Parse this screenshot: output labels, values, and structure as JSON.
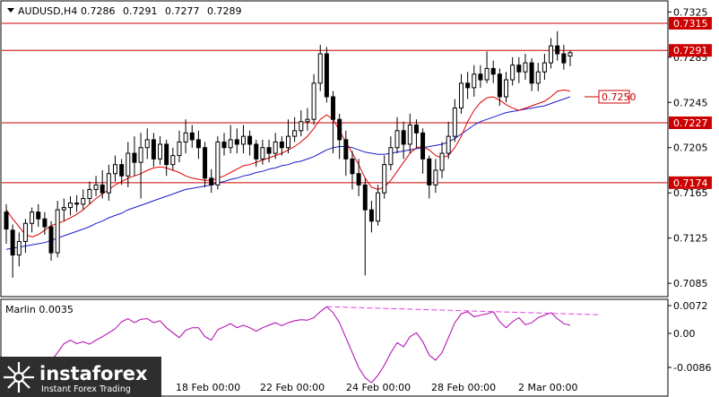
{
  "header": {
    "symbol": "AUDUSD,H4",
    "open": "0.7286",
    "high": "0.7291",
    "low": "0.7277",
    "close": "0.7289"
  },
  "indicator": {
    "name": "Marlin 0.0035",
    "ticks": [
      "0.0072",
      "0.00",
      "-0.0086"
    ]
  },
  "price_axis": {
    "ticks": [
      "0.7325",
      "0.7285",
      "0.7245",
      "0.7205",
      "0.7165",
      "0.7125",
      "0.7085"
    ]
  },
  "time_axis": {
    "ticks": [
      "18 Feb 00:00",
      "22 Feb 00:00",
      "24 Feb 00:00",
      "28 Feb 00:00",
      "2 Mar 00:00"
    ]
  },
  "levels": [
    {
      "label": "0.7315",
      "value": 0.7315
    },
    {
      "label": "0.7291",
      "value": 0.7291
    },
    {
      "label": "0.7227",
      "value": 0.7227
    },
    {
      "label": "0.7174",
      "value": 0.7174
    }
  ],
  "target": {
    "label": "0.7250",
    "value": 0.725
  },
  "logo": {
    "brand": "instaforex",
    "tagline": "Instant Forex Trading"
  },
  "colors": {
    "level_line": "#cc0000",
    "ma_fast": "#e00000",
    "ma_slow": "#1a1acc",
    "oscillator": "#b000b0",
    "divergence": "#e040e0",
    "candle_up": "#ffffff",
    "candle_down": "#000000",
    "logo_bg": "#2e2e2e"
  },
  "chart_data": {
    "type": "candlestick",
    "title": "AUDUSD,H4",
    "ylim": [
      0.7074,
      0.7334
    ],
    "candles": [
      [
        0.7148,
        0.7133,
        0.7155,
        0.712
      ],
      [
        0.7132,
        0.711,
        0.7137,
        0.709
      ],
      [
        0.711,
        0.7122,
        0.713,
        0.71
      ],
      [
        0.7122,
        0.7138,
        0.7142,
        0.7112
      ],
      [
        0.7138,
        0.7148,
        0.7152,
        0.713
      ],
      [
        0.7148,
        0.7142,
        0.7155,
        0.7135
      ],
      [
        0.7142,
        0.7135,
        0.7148,
        0.7128
      ],
      [
        0.7135,
        0.7112,
        0.714,
        0.7105
      ],
      [
        0.7112,
        0.715,
        0.7158,
        0.7108
      ],
      [
        0.715,
        0.7152,
        0.716,
        0.714
      ],
      [
        0.7152,
        0.7156,
        0.7162,
        0.7145
      ],
      [
        0.7156,
        0.7155,
        0.7163,
        0.7148
      ],
      [
        0.7155,
        0.716,
        0.7168,
        0.715
      ],
      [
        0.716,
        0.7168,
        0.7175,
        0.7155
      ],
      [
        0.7168,
        0.7172,
        0.718,
        0.7162
      ],
      [
        0.7172,
        0.7165,
        0.7185,
        0.716
      ],
      [
        0.7165,
        0.7182,
        0.719,
        0.7158
      ],
      [
        0.7182,
        0.719,
        0.7198,
        0.7175
      ],
      [
        0.719,
        0.718,
        0.7195,
        0.7172
      ],
      [
        0.718,
        0.72,
        0.721,
        0.717
      ],
      [
        0.72,
        0.7192,
        0.7215,
        0.718
      ],
      [
        0.7192,
        0.7205,
        0.7218,
        0.716
      ],
      [
        0.7205,
        0.7212,
        0.7222,
        0.7195
      ],
      [
        0.7212,
        0.7195,
        0.7218,
        0.7188
      ],
      [
        0.7195,
        0.7208,
        0.7215,
        0.719
      ],
      [
        0.7208,
        0.719,
        0.7212,
        0.718
      ],
      [
        0.719,
        0.7198,
        0.7205,
        0.7185
      ],
      [
        0.7198,
        0.721,
        0.722,
        0.7192
      ],
      [
        0.721,
        0.7218,
        0.723,
        0.72
      ],
      [
        0.7218,
        0.7212,
        0.7225,
        0.7205
      ],
      [
        0.7212,
        0.7205,
        0.722,
        0.7195
      ],
      [
        0.7205,
        0.7178,
        0.721,
        0.717
      ],
      [
        0.7178,
        0.7172,
        0.7186,
        0.7165
      ],
      [
        0.7172,
        0.721,
        0.7215,
        0.7168
      ],
      [
        0.721,
        0.7205,
        0.7218,
        0.7198
      ],
      [
        0.7205,
        0.7212,
        0.7225,
        0.72
      ],
      [
        0.7212,
        0.7208,
        0.7222,
        0.72
      ],
      [
        0.7208,
        0.7215,
        0.7225,
        0.72
      ],
      [
        0.7215,
        0.7208,
        0.722,
        0.7198
      ],
      [
        0.7208,
        0.7195,
        0.7212,
        0.7188
      ],
      [
        0.7195,
        0.7205,
        0.7212,
        0.719
      ],
      [
        0.7205,
        0.72,
        0.7212,
        0.7192
      ],
      [
        0.72,
        0.721,
        0.7218,
        0.7195
      ],
      [
        0.721,
        0.7205,
        0.7215,
        0.7198
      ],
      [
        0.7205,
        0.7215,
        0.723,
        0.72
      ],
      [
        0.7215,
        0.722,
        0.7232,
        0.721
      ],
      [
        0.722,
        0.7228,
        0.7238,
        0.7215
      ],
      [
        0.7228,
        0.723,
        0.724,
        0.722
      ],
      [
        0.723,
        0.7262,
        0.727,
        0.7225
      ],
      [
        0.7262,
        0.7288,
        0.7296,
        0.7255
      ],
      [
        0.7288,
        0.725,
        0.7294,
        0.7245
      ],
      [
        0.725,
        0.723,
        0.7255,
        0.72
      ],
      [
        0.723,
        0.7212,
        0.7235,
        0.7195
      ],
      [
        0.7212,
        0.7195,
        0.722,
        0.718
      ],
      [
        0.7195,
        0.7182,
        0.7202,
        0.7168
      ],
      [
        0.7182,
        0.7172,
        0.7195,
        0.7162
      ],
      [
        0.7172,
        0.715,
        0.7178,
        0.7092
      ],
      [
        0.715,
        0.714,
        0.7158,
        0.713
      ],
      [
        0.714,
        0.7165,
        0.7172,
        0.7136
      ],
      [
        0.7165,
        0.719,
        0.7198,
        0.716
      ],
      [
        0.719,
        0.7205,
        0.7215,
        0.7185
      ],
      [
        0.7205,
        0.722,
        0.7232,
        0.72
      ],
      [
        0.722,
        0.7208,
        0.7228,
        0.7195
      ],
      [
        0.7208,
        0.7225,
        0.7235,
        0.72
      ],
      [
        0.7225,
        0.7218,
        0.723,
        0.7205
      ],
      [
        0.7218,
        0.7195,
        0.7222,
        0.7182
      ],
      [
        0.7195,
        0.7172,
        0.7198,
        0.716
      ],
      [
        0.7172,
        0.7185,
        0.7195,
        0.7165
      ],
      [
        0.7185,
        0.72,
        0.721,
        0.7178
      ],
      [
        0.72,
        0.7215,
        0.7228,
        0.7195
      ],
      [
        0.7215,
        0.724,
        0.7248,
        0.721
      ],
      [
        0.724,
        0.7262,
        0.727,
        0.7235
      ],
      [
        0.7262,
        0.7258,
        0.7272,
        0.7248
      ],
      [
        0.7258,
        0.727,
        0.7278,
        0.725
      ],
      [
        0.727,
        0.7265,
        0.7278,
        0.7258
      ],
      [
        0.7265,
        0.7275,
        0.729,
        0.7262
      ],
      [
        0.7275,
        0.727,
        0.7282,
        0.7262
      ],
      [
        0.727,
        0.725,
        0.7275,
        0.7242
      ],
      [
        0.725,
        0.7265,
        0.7272,
        0.7245
      ],
      [
        0.7265,
        0.7278,
        0.7285,
        0.726
      ],
      [
        0.7278,
        0.7272,
        0.7285,
        0.7262
      ],
      [
        0.7272,
        0.728,
        0.7288,
        0.7265
      ],
      [
        0.728,
        0.7262,
        0.7284,
        0.7255
      ],
      [
        0.7262,
        0.7272,
        0.728,
        0.7255
      ],
      [
        0.7272,
        0.728,
        0.7288,
        0.7265
      ],
      [
        0.728,
        0.7295,
        0.7302,
        0.7275
      ],
      [
        0.7295,
        0.7288,
        0.7308,
        0.7282
      ],
      [
        0.7288,
        0.728,
        0.7296,
        0.7274
      ],
      [
        0.7286,
        0.7289,
        0.7291,
        0.7277
      ]
    ],
    "ma_fast": [
      0.715,
      0.7142,
      0.7135,
      0.7128,
      0.7126,
      0.7128,
      0.7132,
      0.7136,
      0.7138,
      0.714,
      0.7143,
      0.7146,
      0.715,
      0.7155,
      0.716,
      0.7164,
      0.7168,
      0.7172,
      0.7175,
      0.7178,
      0.718,
      0.7182,
      0.7185,
      0.7187,
      0.7188,
      0.7187,
      0.7185,
      0.7183,
      0.718,
      0.7178,
      0.7177,
      0.7176,
      0.7176,
      0.7178,
      0.718,
      0.7183,
      0.7186,
      0.7189,
      0.719,
      0.7192,
      0.7194,
      0.7196,
      0.7198,
      0.72,
      0.7203,
      0.7206,
      0.721,
      0.7215,
      0.7222,
      0.723,
      0.7234,
      0.723,
      0.722,
      0.721,
      0.72,
      0.719,
      0.7178,
      0.717,
      0.7168,
      0.717,
      0.7176,
      0.7184,
      0.7192,
      0.72,
      0.7205,
      0.7206,
      0.7203,
      0.7198,
      0.7196,
      0.7198,
      0.7205,
      0.7215,
      0.7228,
      0.7238,
      0.7245,
      0.7249,
      0.725,
      0.7247,
      0.7243,
      0.724,
      0.7238,
      0.724,
      0.7242,
      0.7244,
      0.7246,
      0.725,
      0.7255,
      0.7256,
      0.7255
    ],
    "ma_slow": [
      0.7115,
      0.7116,
      0.7117,
      0.7118,
      0.7119,
      0.712,
      0.7121,
      0.7123,
      0.7125,
      0.7127,
      0.7129,
      0.7131,
      0.7133,
      0.7135,
      0.7138,
      0.714,
      0.7143,
      0.7145,
      0.7147,
      0.715,
      0.7152,
      0.7154,
      0.7156,
      0.7158,
      0.716,
      0.7162,
      0.7164,
      0.7166,
      0.7168,
      0.7169,
      0.717,
      0.7171,
      0.7172,
      0.7174,
      0.7175,
      0.7177,
      0.7178,
      0.718,
      0.7181,
      0.7183,
      0.7184,
      0.7186,
      0.7187,
      0.7189,
      0.719,
      0.7192,
      0.7193,
      0.7195,
      0.7197,
      0.72,
      0.7203,
      0.7205,
      0.7206,
      0.7206,
      0.7205,
      0.7203,
      0.7201,
      0.72,
      0.7199,
      0.7199,
      0.72,
      0.7201,
      0.7202,
      0.7203,
      0.7204,
      0.7205,
      0.7206,
      0.7207,
      0.7208,
      0.721,
      0.7213,
      0.7217,
      0.7221,
      0.7225,
      0.7228,
      0.723,
      0.7232,
      0.7234,
      0.7236,
      0.7237,
      0.7238,
      0.7239,
      0.724,
      0.7241,
      0.7242,
      0.7244,
      0.7246,
      0.7248,
      0.725
    ],
    "oscillator": {
      "name": "Marlin",
      "ylim": [
        -0.0105,
        0.0085
      ],
      "values": [
        -0.0058,
        -0.0068,
        -0.006,
        -0.0048,
        -0.0035,
        -0.004,
        -0.005,
        -0.0036,
        -0.002,
        -0.0002,
        0.0005,
        -0.0002,
        0.0002,
        -0.0003,
        0.0005,
        0.0012,
        0.002,
        0.0028,
        0.0042,
        0.0048,
        0.004,
        0.0047,
        0.0048,
        0.004,
        0.0044,
        0.003,
        0.002,
        0.001,
        0.0025,
        0.003,
        0.003,
        0.0012,
        0.0005,
        0.0026,
        0.0032,
        0.0038,
        0.003,
        0.0035,
        0.003,
        0.0023,
        0.003,
        0.0035,
        0.004,
        0.0034,
        0.004,
        0.0044,
        0.0046,
        0.0045,
        0.005,
        0.0062,
        0.0072,
        0.006,
        0.004,
        0.001,
        -0.002,
        -0.005,
        -0.007,
        -0.008,
        -0.0065,
        -0.0045,
        -0.002,
        0.0,
        -0.0008,
        0.0012,
        0.002,
        0.0002,
        -0.0025,
        -0.0035,
        -0.002,
        0.001,
        0.004,
        0.0058,
        0.0062,
        0.0052,
        0.0055,
        0.0058,
        0.0062,
        0.0042,
        0.003,
        0.0042,
        0.005,
        0.0036,
        0.004,
        0.005,
        0.0055,
        0.006,
        0.0048,
        0.0038,
        0.0035
      ]
    },
    "divergence_line": {
      "from": 0.0072,
      "to": 0.0056
    }
  }
}
